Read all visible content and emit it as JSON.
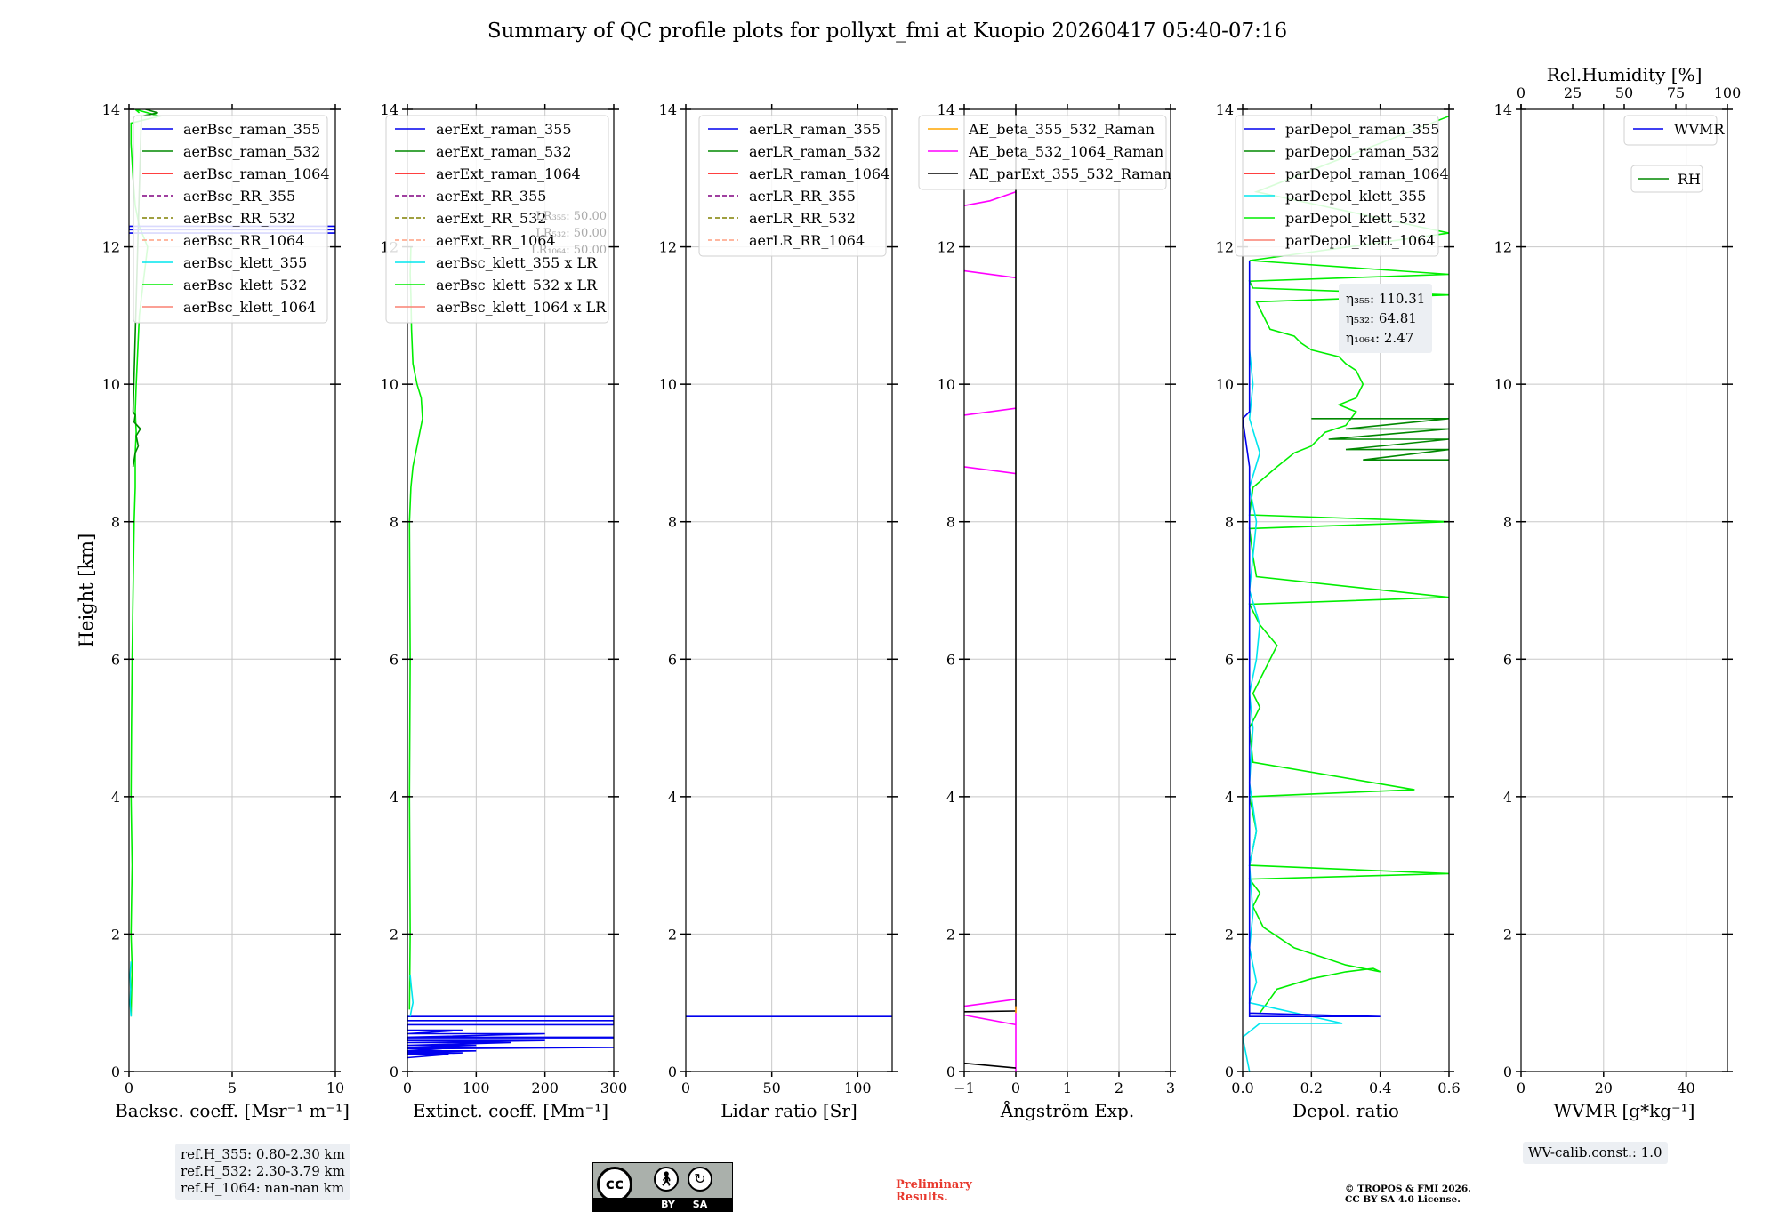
{
  "title": "Summary of QC profile plots for pollyxt_fmi at Kuopio 20260417 05:40-07:16",
  "colors": {
    "raman_355": "#0000ee",
    "raman_532": "#008800",
    "raman_1064": "#ff0000",
    "rr_355": "#800080",
    "rr_532": "#808000",
    "rr_1064": "#ff9f80",
    "klett_355": "#00e5ee",
    "klett_532": "#00ee00",
    "klett_1064": "#fa8072",
    "ae_355_532": "#ffa500",
    "ae_532_1064": "#ff00ff",
    "ae_ext": "#000000",
    "grid": "#c8c8c8"
  },
  "common": {
    "ylabel": "Height [km]",
    "ylim": [
      0,
      14
    ],
    "yticks": [
      0,
      2,
      4,
      6,
      8,
      10,
      12,
      14
    ]
  },
  "chart_data": [
    {
      "type": "line",
      "id": "backscatter",
      "xlabel": "Backsc. coeff. [Msr⁻¹ m⁻¹]",
      "xlim": [
        0,
        10
      ],
      "xticks": [
        0,
        5,
        10
      ],
      "legend": [
        "aerBsc_raman_355",
        "aerBsc_raman_532",
        "aerBsc_raman_1064",
        "aerBsc_RR_355",
        "aerBsc_RR_532",
        "aerBsc_RR_1064",
        "aerBsc_klett_355",
        "aerBsc_klett_532",
        "aerBsc_klett_1064"
      ],
      "legend_keys": [
        "raman_355",
        "raman_532",
        "raman_1064",
        "rr_355",
        "rr_532",
        "rr_1064",
        "klett_355",
        "klett_532",
        "klett_1064"
      ],
      "legend_styles": [
        "solid",
        "solid",
        "solid",
        "dashed",
        "dashed",
        "dashed",
        "solid",
        "solid",
        "solid"
      ],
      "series": [
        {
          "name": "aerBsc_klett_532",
          "color_key": "klett_532",
          "x": [
            0.1,
            0.15,
            0.1,
            0.15,
            0.1,
            0.12,
            0.15,
            0.2,
            0.25,
            0.3,
            0.3,
            0.35,
            0.3,
            0.35,
            0.5,
            0.7,
            0.9,
            0.5,
            0.3,
            0.2,
            0.1,
            0.1,
            1.5,
            0.3,
            0.5
          ],
          "y": [
            0.8,
            1.5,
            2.0,
            3.0,
            4.0,
            5.0,
            6.0,
            7.0,
            8.0,
            8.5,
            9.0,
            9.3,
            9.6,
            10.0,
            11.0,
            11.5,
            12.0,
            12.3,
            12.6,
            13.0,
            13.5,
            13.8,
            13.9,
            14.0,
            13.95
          ]
        },
        {
          "name": "aerBsc_raman_532",
          "color_key": "raman_532",
          "x": [
            0.2,
            0.3,
            0.45,
            0.35,
            0.55,
            0.25,
            0.3,
            0.2,
            0.6,
            1.4,
            0.8
          ],
          "y": [
            8.8,
            9.0,
            9.1,
            9.25,
            9.35,
            9.45,
            9.55,
            9.6,
            13.9,
            13.95,
            14.0
          ]
        },
        {
          "name": "aerBsc_raman_355",
          "color_key": "raman_355",
          "x": [
            0.0,
            10.0,
            10.0,
            0.0,
            0.0,
            10.0
          ],
          "y": [
            12.2,
            12.2,
            12.3,
            12.3,
            12.25,
            12.25
          ]
        },
        {
          "name": "aerBsc_klett_355",
          "color_key": "klett_355",
          "x": [
            0.1,
            0.05,
            0.08,
            0.05,
            0.1
          ],
          "y": [
            0.8,
            1.0,
            1.2,
            1.4,
            1.6
          ]
        }
      ],
      "info": [
        "ref.H_355: 0.80-2.30 km",
        "ref.H_532: 2.30-3.79 km",
        "ref.H_1064: nan-nan km"
      ]
    },
    {
      "type": "line",
      "id": "extinction",
      "xlabel": "Extinct. coeff. [Mm⁻¹]",
      "xlim": [
        0,
        300
      ],
      "xticks": [
        0,
        100,
        200,
        300
      ],
      "legend": [
        "aerExt_raman_355",
        "aerExt_raman_532",
        "aerExt_raman_1064",
        "aerExt_RR_355",
        "aerExt_RR_532",
        "aerExt_RR_1064",
        "aerBsc_klett_355 x LR",
        "aerBsc_klett_532 x LR",
        "aerBsc_klett_1064 x LR"
      ],
      "legend_keys": [
        "raman_355",
        "raman_532",
        "raman_1064",
        "rr_355",
        "rr_532",
        "rr_1064",
        "klett_355",
        "klett_532",
        "klett_1064"
      ],
      "legend_styles": [
        "solid",
        "solid",
        "solid",
        "dashed",
        "dashed",
        "dashed",
        "solid",
        "solid",
        "solid"
      ],
      "lr_labels": [
        "LR₃₅₅: 50.00",
        "LR₅₃₂: 50.00",
        "LR₁₀₆₄: 50.00"
      ],
      "series": [
        {
          "name": "aerBsc_klett_532 x LR",
          "color_key": "klett_532",
          "x": [
            3,
            4,
            3,
            4,
            3,
            5,
            8,
            12,
            18,
            22,
            20,
            14,
            8,
            6,
            5,
            4,
            5
          ],
          "y": [
            0.9,
            2.0,
            4.0,
            6.0,
            8.0,
            8.5,
            8.8,
            9.0,
            9.3,
            9.5,
            9.8,
            10.0,
            10.3,
            10.8,
            11.3,
            11.6,
            12.0
          ]
        },
        {
          "name": "aerExt_raman_355",
          "color_key": "raman_355",
          "x": [
            300,
            0,
            0,
            300,
            300,
            0,
            0,
            80,
            0,
            200,
            0,
            300,
            300,
            0,
            0,
            200,
            0,
            150,
            0,
            100,
            0,
            300,
            0,
            50,
            0,
            100,
            0,
            30,
            0,
            80,
            0,
            60,
            0
          ],
          "y": [
            0.8,
            0.8,
            0.74,
            0.74,
            0.68,
            0.68,
            0.6,
            0.6,
            0.55,
            0.55,
            0.5,
            0.5,
            0.49,
            0.49,
            0.45,
            0.45,
            0.42,
            0.42,
            0.38,
            0.38,
            0.35,
            0.35,
            0.33,
            0.33,
            0.3,
            0.3,
            0.28,
            0.28,
            0.27,
            0.27,
            0.25,
            0.25,
            0.2
          ]
        },
        {
          "name": "aerBsc_klett_355 x LR",
          "color_key": "klett_355",
          "x": [
            4,
            6,
            8,
            6,
            4
          ],
          "y": [
            0.8,
            0.9,
            1.0,
            1.2,
            1.4
          ]
        }
      ]
    },
    {
      "type": "line",
      "id": "lidar-ratio",
      "xlabel": "Lidar ratio [Sr]",
      "xlim": [
        0,
        120
      ],
      "xticks": [
        0,
        50,
        100
      ],
      "legend": [
        "aerLR_raman_355",
        "aerLR_raman_532",
        "aerLR_raman_1064",
        "aerLR_RR_355",
        "aerLR_RR_532",
        "aerLR_RR_1064"
      ],
      "legend_keys": [
        "raman_355",
        "raman_532",
        "raman_1064",
        "rr_355",
        "rr_532",
        "rr_1064"
      ],
      "legend_styles": [
        "solid",
        "solid",
        "solid",
        "dashed",
        "dashed",
        "dashed"
      ],
      "series": [
        {
          "name": "aerLR_raman_355",
          "color_key": "raman_355",
          "x": [
            0,
            120
          ],
          "y": [
            0.8,
            0.8
          ]
        }
      ]
    },
    {
      "type": "line",
      "id": "angstrom",
      "xlabel": "Ångström Exp.",
      "xlim": [
        -1,
        3
      ],
      "xticks": [
        -1,
        0,
        1,
        2,
        3
      ],
      "xticklabels": [
        "−1",
        "0",
        "1",
        "2",
        "3"
      ],
      "legend": [
        "AE_beta_355_532_Raman",
        "AE_beta_532_1064_Raman",
        "AE_parExt_355_532_Raman"
      ],
      "legend_keys": [
        "ae_355_532",
        "ae_532_1064",
        "ae_ext"
      ],
      "legend_styles": [
        "solid",
        "solid",
        "solid"
      ],
      "series": [
        {
          "name": "AE_beta_532_1064_Raman",
          "color_key": "ae_532_1064",
          "x": [
            -1,
            -0.5,
            0,
            0,
            0,
            0
          ],
          "y": [
            12.6,
            12.67,
            12.8,
            13.5,
            13.8,
            14.0
          ],
          "segments": [
            [
              [
                -1,
                12.6
              ],
              [
                -0.5,
                12.67
              ],
              [
                0,
                12.8
              ]
            ],
            [
              [
                -1,
                11.65
              ],
              [
                0,
                11.55
              ]
            ],
            [
              [
                -1,
                9.55
              ],
              [
                0,
                9.65
              ]
            ],
            [
              [
                -1,
                8.8
              ],
              [
                0,
                8.7
              ]
            ],
            [
              [
                -1,
                0.95
              ],
              [
                0,
                1.05
              ]
            ],
            [
              [
                -1,
                0.82
              ],
              [
                0,
                0.68
              ]
            ],
            [
              [
                0,
                0.95
              ],
              [
                0,
                0.0
              ]
            ]
          ]
        },
        {
          "name": "AE_parExt_355_532_Raman",
          "color_key": "ae_ext",
          "x": [
            0,
            0
          ],
          "y": [
            0.9,
            14.0
          ],
          "segments": [
            [
              [
                0,
                0.9
              ],
              [
                0,
                14.0
              ]
            ],
            [
              [
                -1,
                0.87
              ],
              [
                0,
                0.88
              ]
            ],
            [
              [
                -1,
                0.12
              ],
              [
                0,
                0.05
              ]
            ]
          ]
        },
        {
          "name": "AE_beta_355_532_Raman",
          "color_key": "ae_355_532",
          "x": [
            0,
            0
          ],
          "y": [
            0.85,
            0.95
          ],
          "segments": [
            [
              [
                0,
                0.85
              ],
              [
                0,
                0.95
              ]
            ]
          ]
        }
      ]
    },
    {
      "type": "line",
      "id": "depol",
      "xlabel": "Depol. ratio",
      "xlim": [
        0,
        0.6
      ],
      "xticks": [
        0,
        0.2,
        0.4,
        0.6
      ],
      "xticklabels": [
        "0.0",
        "0.2",
        "0.4",
        "0.6"
      ],
      "legend": [
        "parDepol_raman_355",
        "parDepol_raman_532",
        "parDepol_raman_1064",
        "parDepol_klett_355",
        "parDepol_klett_532",
        "parDepol_klett_1064"
      ],
      "legend_keys": [
        "raman_355",
        "raman_532",
        "raman_1064",
        "klett_355",
        "klett_532",
        "klett_1064"
      ],
      "legend_styles": [
        "solid",
        "solid",
        "solid",
        "solid",
        "solid",
        "solid"
      ],
      "eta": [
        "η₃₅₅: 110.31",
        "η₅₃₂: 64.81",
        "η₁₀₆₄: 2.47"
      ],
      "series": [
        {
          "name": "parDepol_klett_532",
          "color_key": "klett_532",
          "x": [
            0.05,
            0.1,
            0.2,
            0.3,
            0.38,
            0.4,
            0.3,
            0.15,
            0.06,
            0.03,
            0.05,
            0.02,
            0.6,
            0.02,
            0.04,
            0.02,
            0.5,
            0.03,
            0.02,
            0.05,
            0.03,
            0.1,
            0.05,
            0.02,
            0.6,
            0.04,
            0.03,
            0.02,
            0.6,
            0.02,
            0.03,
            0.1,
            0.15,
            0.2,
            0.24,
            0.3,
            0.33,
            0.28,
            0.33,
            0.35,
            0.33,
            0.3,
            0.28,
            0.2,
            0.17,
            0.15,
            0.08,
            0.06,
            0.04,
            0.6,
            0.03,
            0.02,
            0.6,
            0.02,
            0.6,
            0.04,
            0.6
          ],
          "y": [
            0.85,
            1.2,
            1.35,
            1.45,
            1.5,
            1.45,
            1.55,
            1.8,
            2.1,
            2.4,
            2.6,
            2.8,
            2.88,
            3.0,
            3.5,
            4.0,
            4.1,
            4.5,
            5.0,
            5.3,
            5.5,
            6.2,
            6.5,
            6.8,
            6.9,
            7.2,
            7.5,
            7.9,
            8.0,
            8.1,
            8.5,
            8.8,
            9.0,
            9.1,
            9.3,
            9.4,
            9.6,
            9.7,
            9.8,
            10.0,
            10.2,
            10.3,
            10.4,
            10.5,
            10.6,
            10.7,
            10.8,
            11.0,
            11.2,
            11.3,
            11.4,
            11.5,
            11.6,
            11.8,
            12.2,
            12.8,
            13.9
          ]
        },
        {
          "name": "parDepol_klett_355",
          "color_key": "klett_355",
          "x": [
            0.02,
            0.0,
            0.05,
            0.29,
            0.02,
            0.04,
            0.02,
            0.03,
            0.02,
            0.04,
            0.02,
            0.03,
            0.02,
            0.04,
            0.05,
            0.02,
            0.03,
            0.04,
            0.02,
            0.05,
            0.02,
            0.03,
            0.02
          ],
          "y": [
            0.0,
            0.5,
            0.7,
            0.7,
            1.0,
            1.3,
            1.8,
            2.3,
            3.0,
            3.5,
            4.2,
            5.0,
            5.5,
            6.0,
            6.5,
            7.0,
            7.5,
            8.0,
            8.5,
            9.0,
            9.5,
            10.0,
            10.5
          ]
        },
        {
          "name": "parDepol_raman_532",
          "color_key": "raman_532",
          "x": [
            0.2,
            0.6,
            0.3,
            0.6,
            0.25,
            0.6,
            0.3,
            0.6,
            0.35,
            0.6
          ],
          "y": [
            9.5,
            9.5,
            9.35,
            9.35,
            9.2,
            9.2,
            9.05,
            9.05,
            8.9,
            8.9
          ]
        },
        {
          "name": "parDepol_raman_355",
          "color_key": "raman_355",
          "x": [
            0.02,
            0.4,
            0.02,
            0.02,
            0.0,
            0.02,
            0.02
          ],
          "y": [
            0.85,
            0.8,
            0.8,
            8.8,
            9.5,
            9.6,
            11.8
          ]
        }
      ]
    },
    {
      "type": "line",
      "id": "wvmr",
      "xlabel": "WVMR [g*kg⁻¹]",
      "xlabel_top": "Rel.Humidity [%]",
      "xlim": [
        0,
        50
      ],
      "xticks": [
        0,
        20,
        40
      ],
      "xlim_top": [
        0,
        100
      ],
      "xticks_top": [
        0,
        25,
        50,
        75,
        100
      ],
      "legend": [
        "WVMR"
      ],
      "legend_keys": [
        "raman_355"
      ],
      "legend_styles": [
        "solid"
      ],
      "legend2": [
        "RH"
      ],
      "legend2_keys": [
        "raman_532"
      ],
      "info": [
        "WV-calib.const.: 1.0"
      ],
      "series": []
    }
  ],
  "footer": {
    "license_badge": [
      "cc",
      "BY",
      "SA"
    ],
    "preliminary": [
      "Preliminary",
      "Results."
    ],
    "copyright": [
      "© TROPOS & FMI 2026.",
      "CC BY SA 4.0 License."
    ]
  }
}
